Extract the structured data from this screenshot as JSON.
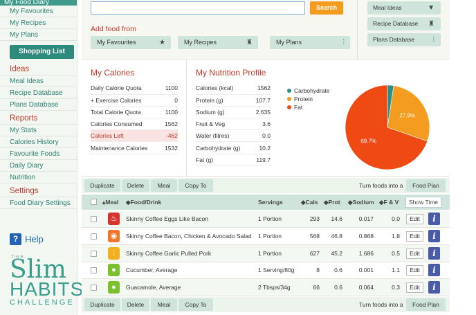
{
  "sidebar": {
    "top_item": "My Food Diary",
    "links_a": [
      "My Favourites",
      "My Recipes",
      "My Plans"
    ],
    "shopping_list": "Shopping List",
    "ideas_head": "Ideas",
    "links_ideas": [
      "Meal Ideas",
      "Recipe Database",
      "Plans Database"
    ],
    "reports_head": "Reports",
    "links_reports": [
      "My Stats",
      "Calories History",
      "Favourite Foods",
      "Daily Diary",
      "Nutrition"
    ],
    "settings_head": "Settings",
    "links_settings": [
      "Food Diary Settings"
    ],
    "help": "Help",
    "logo": {
      "the": "THE",
      "slim": "Slim",
      "habits": "HABITS",
      "challenge": "CHALLENGE"
    }
  },
  "top": {
    "search_value": "",
    "search_label": "Search",
    "add_from": "Add food from",
    "add_buttons": [
      "My Favourites",
      "My Recipes",
      "My Plans"
    ],
    "right_buttons": [
      "Meal Ideas",
      "Recipe Database",
      "Plans Database"
    ]
  },
  "calories": {
    "title": "My Calories",
    "rows": [
      {
        "label": "Daily Calorie Quota",
        "value": "1100"
      },
      {
        "label": "+ Exercise Calories",
        "value": "0"
      },
      {
        "label": "Total Calorie Quota",
        "value": "1100"
      },
      {
        "label": "Calories Consumed",
        "value": "1562"
      },
      {
        "label": "Calories Left",
        "value": "-462"
      },
      {
        "label": "Maintenance Calories",
        "value": "1532"
      }
    ]
  },
  "nutrition": {
    "title": "My Nutrition Profile",
    "rows": [
      {
        "label": "Calories (kcal)",
        "value": "1562"
      },
      {
        "label": "Protein (g)",
        "value": "107.7"
      },
      {
        "label": "Sodium (g)",
        "value": "2.635"
      },
      {
        "label": "Fruit & Veg",
        "value": "3.6"
      },
      {
        "label": "Water (litres)",
        "value": "0.0"
      },
      {
        "label": "Carbohydrate (g)",
        "value": "10.2"
      },
      {
        "label": "Fat (g)",
        "value": "119.7"
      }
    ]
  },
  "chart_data": {
    "type": "pie",
    "labels": [
      "Carbohydrate",
      "Protein",
      "Fat"
    ],
    "values": [
      2.4,
      27.9,
      69.7
    ],
    "colors": [
      "#2a8f86",
      "#f39c1f",
      "#f04a14"
    ],
    "slice_labels": [
      "",
      "27.9%",
      "69.7%"
    ],
    "legend_position": "top-left"
  },
  "actions": {
    "buttons": [
      "Duplicate",
      "Delete",
      "Meal",
      "Copy To"
    ],
    "turn_into": "Turn foods into a",
    "food_plan": "Food Plan"
  },
  "table": {
    "headers": {
      "meal": "▴Meal",
      "food": "◆Food/Drink",
      "servings": "Servings",
      "cals": "◆Cals",
      "prot": "◆Prot",
      "sodium": "◆Sodium",
      "fv": "◆F & V"
    },
    "show_time": "Show Time",
    "edit": "Edit",
    "rows": [
      {
        "food": "Skinny Coffee Eggs Like Bacon",
        "servings": "1 Portion",
        "cals": "293",
        "prot": "14.6",
        "sodium": "0.017",
        "fv": "0.0",
        "icon": "breakfast-icon",
        "color": "#d6332e"
      },
      {
        "food": "Skinny Coffee Bacon, Chicken & Avocado Salad",
        "servings": "1 Portion",
        "cals": "568",
        "prot": "46.8",
        "sodium": "0.868",
        "fv": "1.8",
        "icon": "lunch-icon",
        "color": "#f0772a"
      },
      {
        "food": "Skinny Coffee Garlic Pulled Pork",
        "servings": "1 Portion",
        "cals": "627",
        "prot": "45.2",
        "sodium": "1.686",
        "fv": "0.5",
        "icon": "dinner-icon",
        "color": "#f2b01e"
      },
      {
        "food": "Cucumber, Average",
        "servings": "1 Serving/80g",
        "cals": "8",
        "prot": "0.6",
        "sodium": "0.001",
        "fv": "1.1",
        "icon": "snack-icon",
        "color": "#7cbf2f"
      },
      {
        "food": "Guacamole, Average",
        "servings": "2 Tbsps/34g",
        "cals": "66",
        "prot": "0.6",
        "sodium": "0.064",
        "fv": "0.3",
        "icon": "snack-icon",
        "color": "#7cbf2f"
      }
    ]
  }
}
